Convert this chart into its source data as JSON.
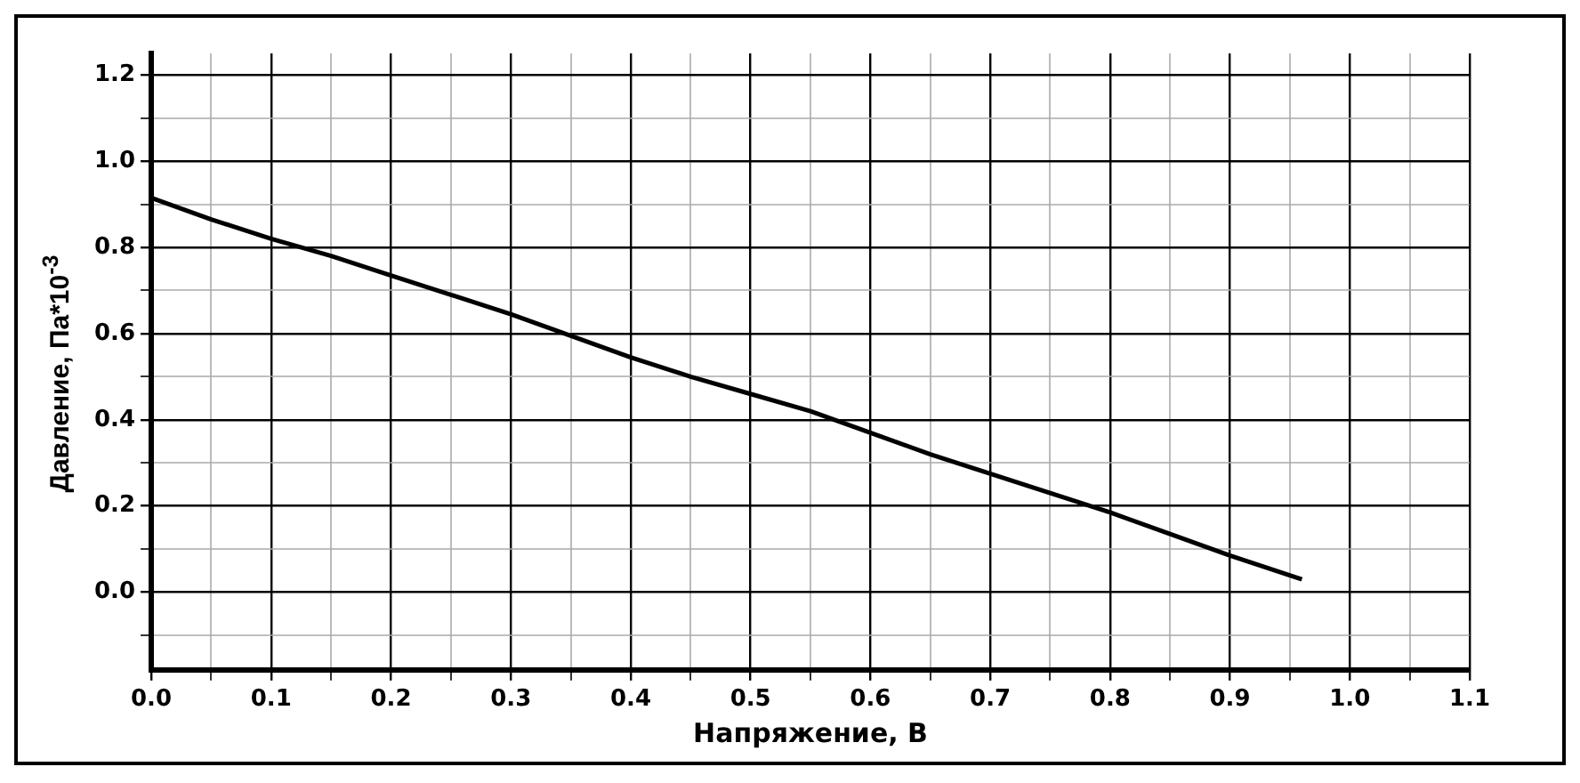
{
  "chart_data": {
    "type": "line",
    "xlabel": "Напряжение, В",
    "ylabel": "Давление, Па*10$^{-3}$",
    "x": [
      0,
      0.05,
      0.1,
      0.15,
      0.2,
      0.25,
      0.3,
      0.35,
      0.4,
      0.45,
      0.5,
      0.55,
      0.6,
      0.65,
      0.7,
      0.75,
      0.8,
      0.85,
      0.9,
      0.96
    ],
    "series": [
      {
        "color": "#000000",
        "values": [
          0.915,
          0.865,
          0.82,
          0.78,
          0.735,
          0.69,
          0.645,
          0.595,
          0.545,
          0.5,
          0.46,
          0.42,
          0.37,
          0.32,
          0.275,
          0.23,
          0.185,
          0.135,
          0.085,
          0.03
        ]
      }
    ],
    "xlim": [
      0,
      1.1
    ],
    "ylim": [
      -0.18,
      1.25
    ],
    "xticks": [
      {
        "value": 0,
        "label": "0.0"
      },
      {
        "value": 0.05,
        "label": null
      },
      0.1,
      {
        "value": 0.15,
        "label": null
      },
      0.2,
      {
        "value": 0.25,
        "label": null
      },
      0.3,
      {
        "value": 0.35,
        "label": null
      },
      0.4,
      {
        "value": 0.45,
        "label": null
      },
      0.5,
      {
        "value": 0.55,
        "label": null
      },
      0.6,
      {
        "value": 0.65,
        "label": null
      },
      0.7,
      {
        "value": 0.75,
        "label": null
      },
      0.8,
      {
        "value": 0.85,
        "label": null
      },
      0.9,
      {
        "value": 0.95,
        "label": null
      },
      {
        "value": 1.0,
        "label": "1.0"
      },
      {
        "value": 1.05,
        "label": null
      },
      1.1
    ],
    "yticks": [
      {
        "value": -0.1,
        "label": null
      },
      {
        "value": 0,
        "label": "0.0"
      },
      {
        "value": 0.1,
        "label": null
      },
      0.2,
      {
        "value": 0.3,
        "label": null
      },
      0.4,
      {
        "value": 0.5,
        "label": null
      },
      0.6,
      {
        "value": 0.7,
        "label": null
      },
      0.8,
      {
        "value": 0.9,
        "label": null
      },
      {
        "value": 1.0,
        "label": "1.0"
      },
      {
        "value": 1.1,
        "label": null
      },
      1.2
    ],
    "grid": true,
    "legend": false,
    "marker": "none",
    "line_style": "solid"
  }
}
